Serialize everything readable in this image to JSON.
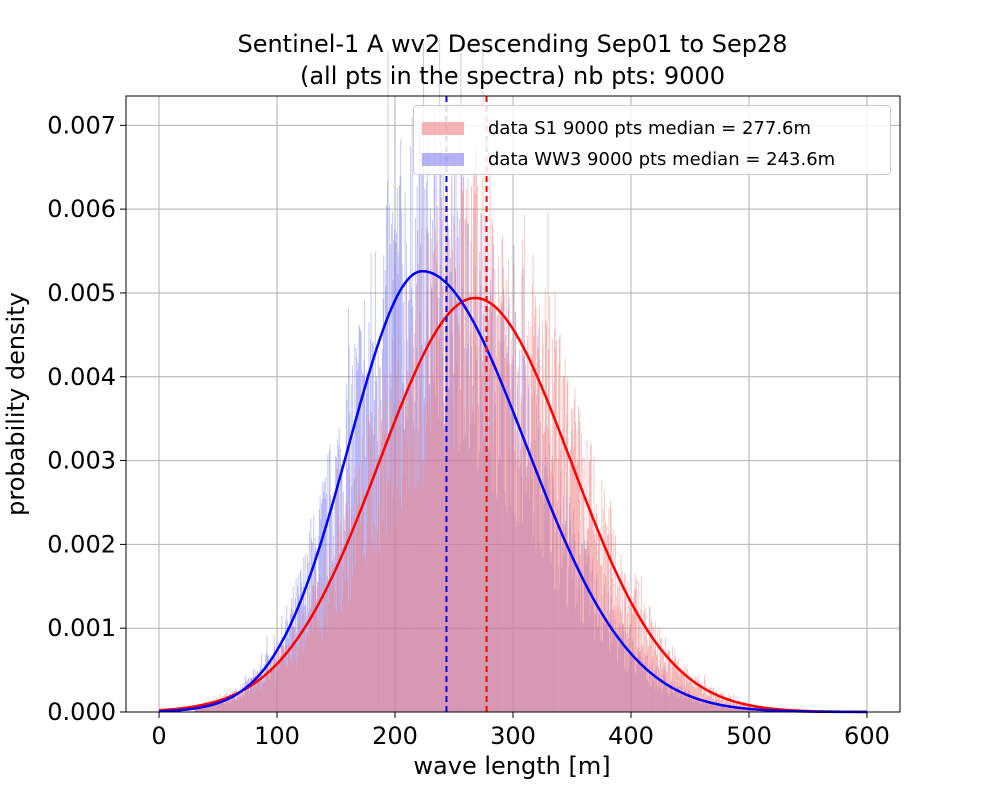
{
  "chart_data": {
    "type": "histogram",
    "title": [
      "Sentinel-1 A wv2 Descending Sep01 to Sep28",
      "(all pts in the spectra) nb pts: 9000"
    ],
    "xlabel": "wave length [m]",
    "ylabel": "probability density",
    "xlim": [
      -28,
      628
    ],
    "ylim": [
      0,
      0.00735
    ],
    "x_ticks": [
      0,
      100,
      200,
      300,
      400,
      500,
      600
    ],
    "x_tick_labels": [
      "0",
      "100",
      "200",
      "300",
      "400",
      "500",
      "600"
    ],
    "y_ticks": [
      0,
      0.001,
      0.002,
      0.003,
      0.004,
      0.005,
      0.006,
      0.007
    ],
    "y_tick_labels": [
      "0.000",
      "0.001",
      "0.002",
      "0.003",
      "0.004",
      "0.005",
      "0.006",
      "0.007"
    ],
    "grid": true,
    "legend_position": "top-right",
    "series": [
      {
        "name": "data S1 9000 pts median = 277.6m",
        "type": "histogram",
        "color": "#f08080",
        "alpha": 0.6,
        "fit": {
          "type": "normal-like",
          "peak_x": 268,
          "peak_y": 0.00494,
          "sigma": 81,
          "color": "#ff0000"
        },
        "median": 277.6
      },
      {
        "name": "data WW3 9000 pts median = 243.6m",
        "type": "histogram",
        "color": "#8080f0",
        "alpha": 0.6,
        "fit": {
          "type": "right-skewed",
          "peak_x": 223,
          "peak_y": 0.00526,
          "sigma_left": 62,
          "sigma_right": 88,
          "color": "#0000ff"
        },
        "median": 243.6
      }
    ]
  }
}
